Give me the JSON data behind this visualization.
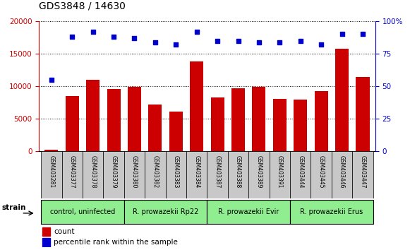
{
  "title": "GDS3848 / 14630",
  "samples": [
    "GSM403281",
    "GSM403377",
    "GSM403378",
    "GSM403379",
    "GSM403380",
    "GSM403382",
    "GSM403383",
    "GSM403384",
    "GSM403387",
    "GSM403388",
    "GSM403389",
    "GSM403391",
    "GSM403444",
    "GSM403445",
    "GSM403446",
    "GSM403447"
  ],
  "counts": [
    200,
    8500,
    11000,
    9600,
    9900,
    7200,
    6100,
    13800,
    8300,
    9700,
    9900,
    8100,
    7900,
    9200,
    15800,
    11400
  ],
  "percentiles": [
    55,
    88,
    92,
    88,
    87,
    84,
    82,
    92,
    85,
    85,
    84,
    84,
    85,
    82,
    90,
    90
  ],
  "group_boundaries": [
    [
      0,
      3,
      "control, uninfected"
    ],
    [
      4,
      7,
      "R. prowazekii Rp22"
    ],
    [
      8,
      11,
      "R. prowazekii Evir"
    ],
    [
      12,
      15,
      "R. prowazekii Erus"
    ]
  ],
  "bar_color": "#CC0000",
  "dot_color": "#0000CC",
  "left_ylim": [
    0,
    20000
  ],
  "right_ylim": [
    0,
    100
  ],
  "left_yticks": [
    0,
    5000,
    10000,
    15000,
    20000
  ],
  "right_yticks": [
    0,
    25,
    50,
    75,
    100
  ],
  "left_ycolor": "#CC0000",
  "right_ycolor": "#0000CC",
  "green": "#90EE90",
  "gray": "#C8C8C8",
  "strain_label": "strain"
}
